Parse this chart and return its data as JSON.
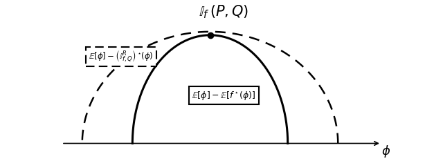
{
  "title": "$\\mathbb{I}_f\\,(P,Q)$",
  "xlabel": "$\\phi$",
  "solid_label": "$\\mathbb{E}[\\phi] - \\mathbb{E}[f^\\star(\\phi)]$",
  "dashed_label": "$\\mathbb{E}[\\phi] - \\left(\\mathbb{I}_{f,Q}^R\\right)^\\star\\!(\\phi)$",
  "solid_color": "#000000",
  "dashed_color": "#000000",
  "background_color": "#ffffff",
  "fig_width": 6.4,
  "fig_height": 2.33,
  "dpi": 100,
  "solid_lw": 2.2,
  "dashed_lw": 1.8
}
